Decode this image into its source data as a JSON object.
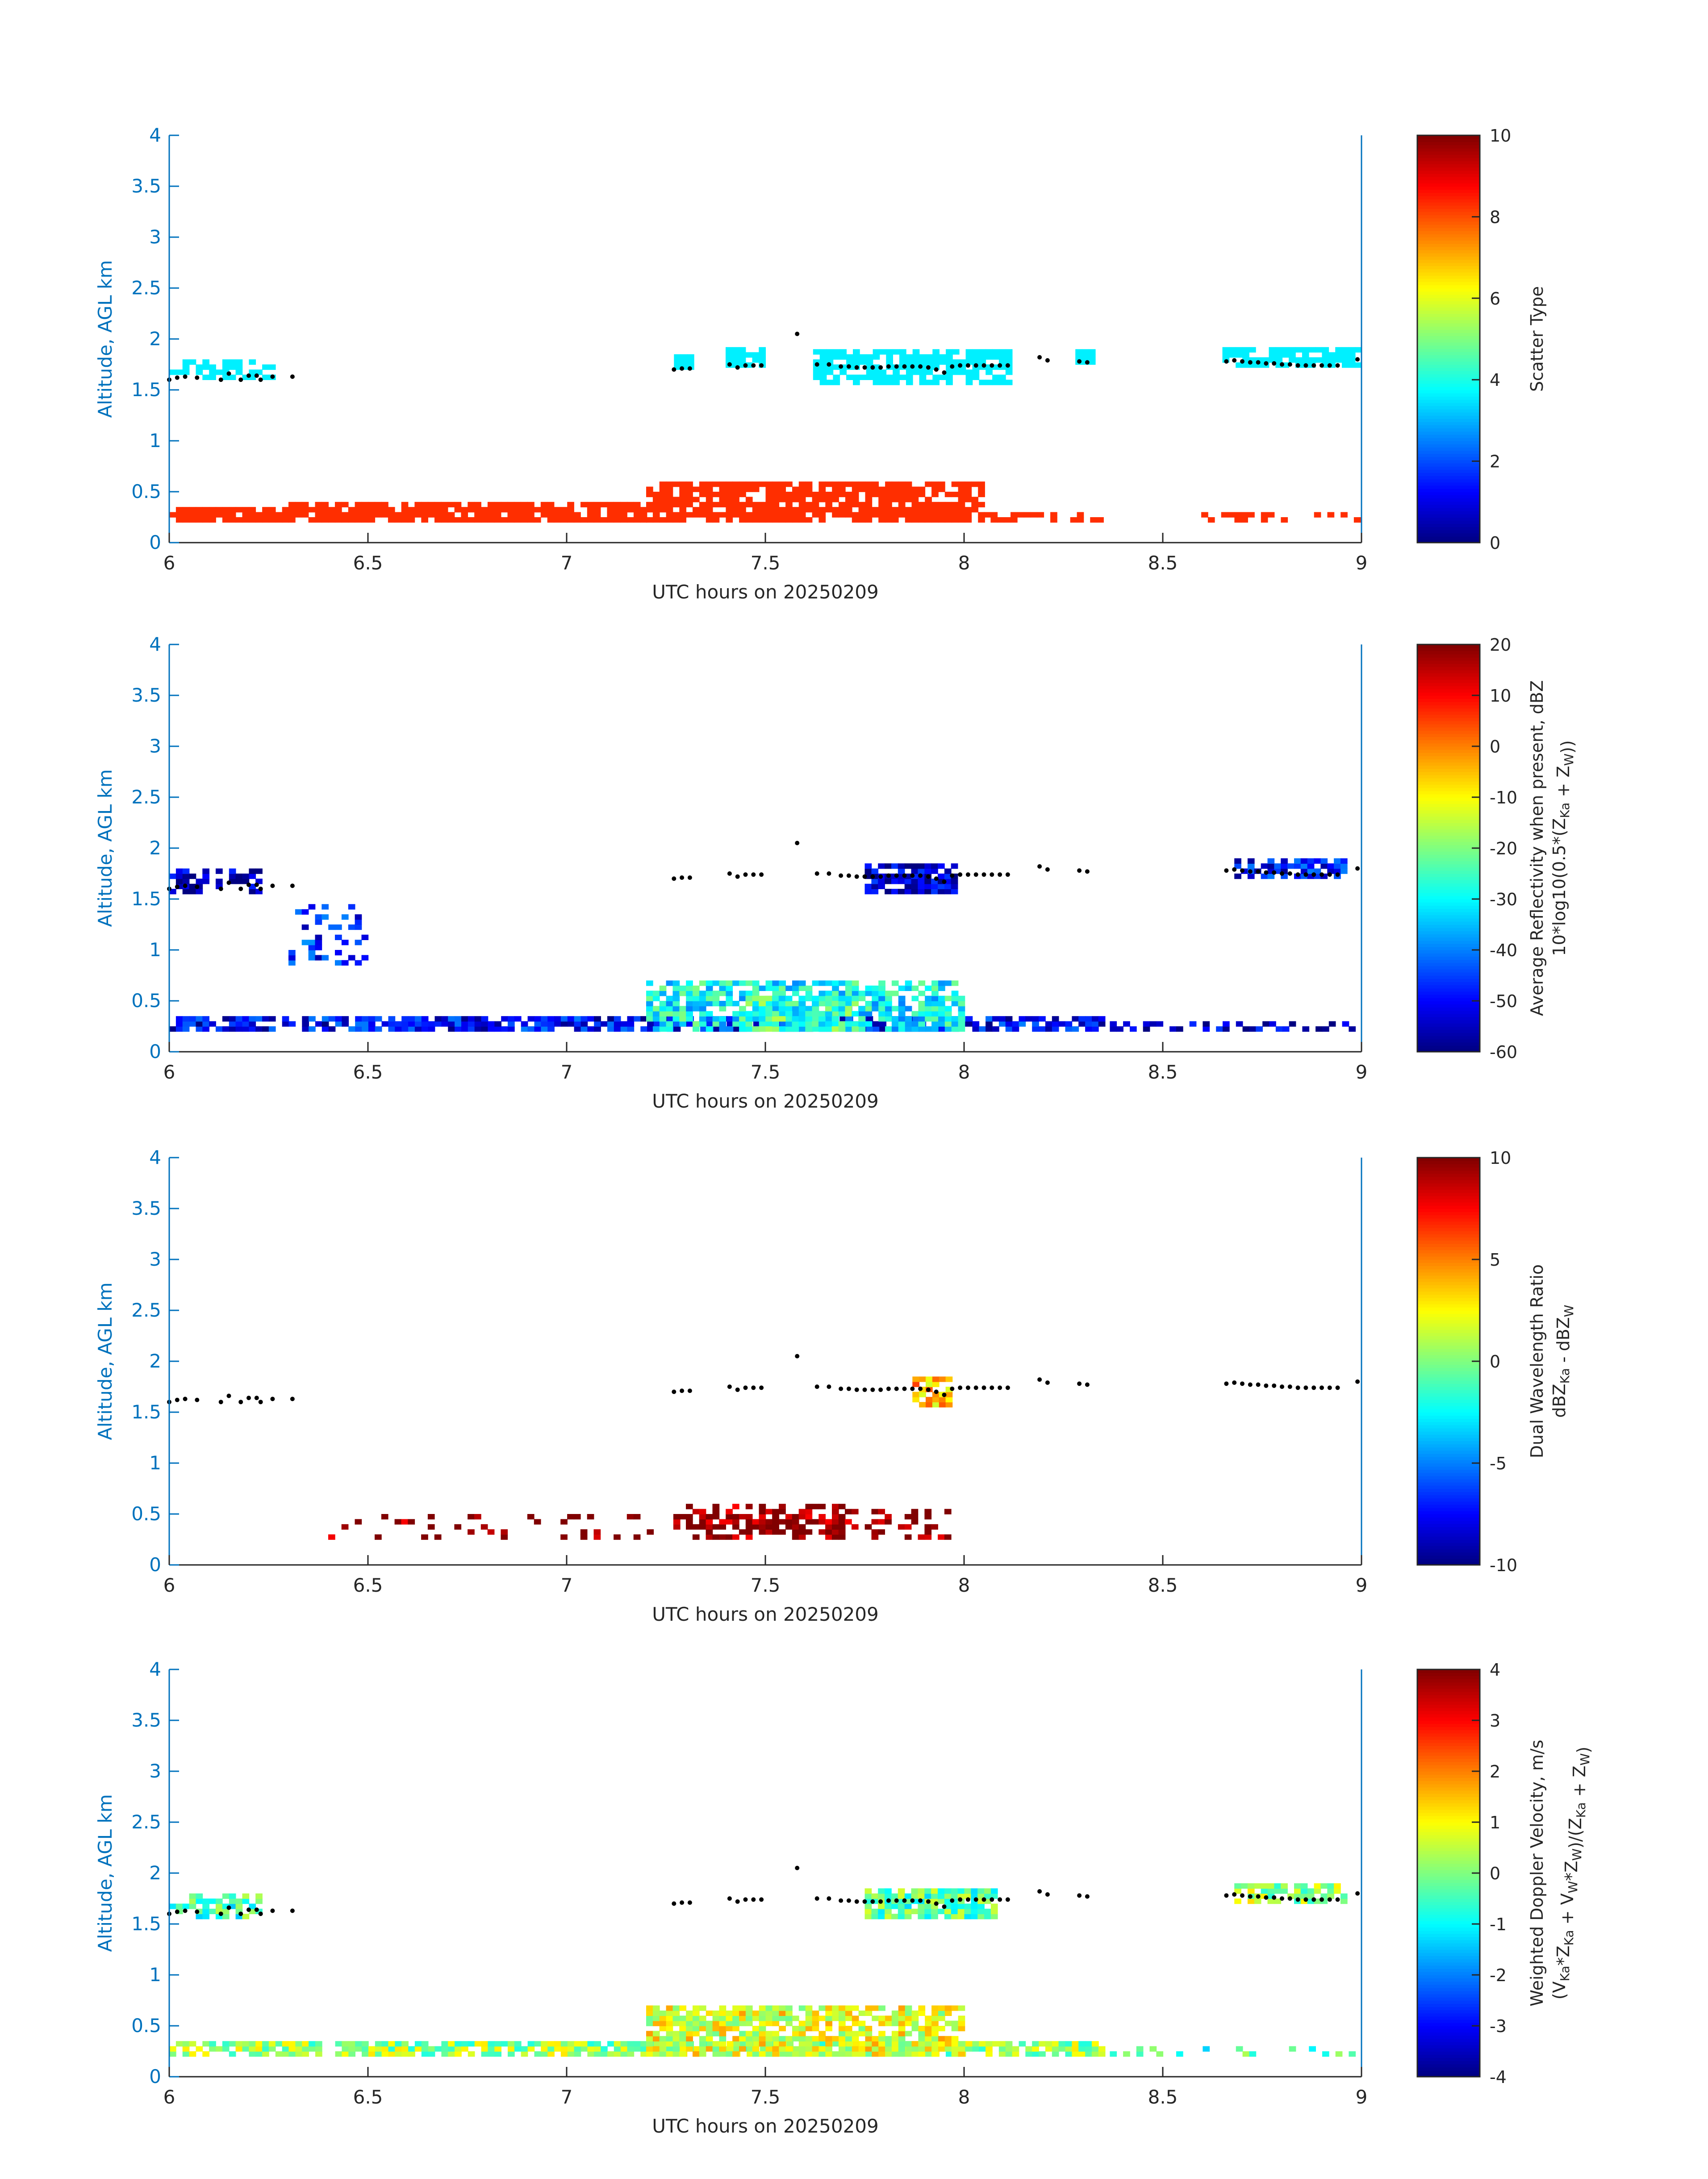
{
  "chart_data": [
    {
      "type": "heatmap",
      "xlabel": "UTC hours on 20250209",
      "ylabel": "Altitude, AGL km",
      "xlim": [
        6,
        9
      ],
      "ylim": [
        0,
        4
      ],
      "xticks": [
        "6",
        "6.5",
        "7",
        "7.5",
        "8",
        "8.5",
        "9"
      ],
      "yticks": [
        "0",
        "0.5",
        "1",
        "1.5",
        "2",
        "2.5",
        "3",
        "3.5",
        "4"
      ],
      "colorbar": {
        "label_lines": [
          "Scatter Type"
        ],
        "range": [
          0,
          10
        ],
        "ticks": [
          "0",
          "2",
          "4",
          "6",
          "8",
          "10"
        ],
        "colormap": "jet"
      },
      "colorbar_label_text": "Scatter Type",
      "layers": [
        {
          "value": 3.6,
          "x_range": [
            6.0,
            6.27
          ],
          "y_range": [
            1.6,
            1.8
          ],
          "density": 0.55
        },
        {
          "value": 3.6,
          "x_range": [
            7.27,
            7.32
          ],
          "y_range": [
            1.7,
            1.85
          ],
          "density": 0.9
        },
        {
          "value": 3.6,
          "x_range": [
            7.4,
            7.5
          ],
          "y_range": [
            1.72,
            1.9
          ],
          "density": 0.8
        },
        {
          "value": 3.6,
          "x_range": [
            7.62,
            8.12
          ],
          "y_range": [
            1.55,
            1.9
          ],
          "density": 0.75
        },
        {
          "value": 3.6,
          "x_range": [
            8.28,
            8.33
          ],
          "y_range": [
            1.75,
            1.9
          ],
          "density": 0.9
        },
        {
          "value": 3.6,
          "x_range": [
            8.65,
            9.0
          ],
          "y_range": [
            1.72,
            1.9
          ],
          "density": 0.8
        },
        {
          "value": 8.3,
          "x_range": [
            6.0,
            6.3
          ],
          "y_range": [
            0.2,
            0.35
          ],
          "density": 0.85
        },
        {
          "value": 8.3,
          "x_range": [
            6.3,
            7.2
          ],
          "y_range": [
            0.2,
            0.38
          ],
          "density": 0.85
        },
        {
          "value": 8.3,
          "x_range": [
            7.2,
            8.05
          ],
          "y_range": [
            0.2,
            0.6
          ],
          "density": 0.8
        },
        {
          "value": 8.3,
          "x_range": [
            8.05,
            8.35
          ],
          "y_range": [
            0.2,
            0.3
          ],
          "density": 0.5
        },
        {
          "value": 8.3,
          "x_range": [
            8.58,
            9.0
          ],
          "y_range": [
            0.2,
            0.3
          ],
          "density": 0.3
        }
      ]
    },
    {
      "type": "heatmap",
      "xlabel": "UTC hours on 20250209",
      "ylabel": "Altitude, AGL km",
      "xlim": [
        6,
        9
      ],
      "ylim": [
        0,
        4
      ],
      "xticks": [
        "6",
        "6.5",
        "7",
        "7.5",
        "8",
        "8.5",
        "9"
      ],
      "yticks": [
        "0",
        "0.5",
        "1",
        "1.5",
        "2",
        "2.5",
        "3",
        "3.5",
        "4"
      ],
      "colorbar": {
        "label_lines": [
          "Average Reflectivity when present, dBZ",
          "10*log10(0.5*(Z_Ka + Z_W))"
        ],
        "range": [
          -60,
          20
        ],
        "ticks": [
          "-60",
          "-50",
          "-40",
          "-30",
          "-20",
          "-10",
          "0",
          "10",
          "20"
        ],
        "colormap": "jet"
      },
      "colorbar_label_text": "Average Reflectivity when present, dBZ 10*log10(0.5*(ZKa + ZW))",
      "layers": [
        {
          "value": -57,
          "x_range": [
            6.0,
            6.22
          ],
          "y_range": [
            1.55,
            1.8
          ],
          "density": 0.55
        },
        {
          "value": -55,
          "x_range": [
            7.75,
            7.97
          ],
          "y_range": [
            1.55,
            1.85
          ],
          "density": 0.85
        },
        {
          "value": -50,
          "x_range": [
            8.68,
            8.95
          ],
          "y_range": [
            1.7,
            1.9
          ],
          "density": 0.75
        },
        {
          "value": -48,
          "x_range": [
            6.3,
            6.5
          ],
          "y_range": [
            0.85,
            1.45
          ],
          "density": 0.3
        },
        {
          "value": -50,
          "x_range": [
            6.0,
            8.35
          ],
          "y_range": [
            0.2,
            0.35
          ],
          "density": 0.75
        },
        {
          "value": -30,
          "x_range": [
            7.2,
            8.0
          ],
          "y_range": [
            0.2,
            0.7
          ],
          "density": 0.7
        },
        {
          "value": -25,
          "x_range": [
            7.45,
            7.75
          ],
          "y_range": [
            0.2,
            0.55
          ],
          "density": 0.6
        },
        {
          "value": -55,
          "x_range": [
            8.35,
            9.0
          ],
          "y_range": [
            0.2,
            0.3
          ],
          "density": 0.35
        }
      ]
    },
    {
      "type": "heatmap",
      "xlabel": "UTC hours on 20250209",
      "ylabel": "Altitude, AGL km",
      "xlim": [
        6,
        9
      ],
      "ylim": [
        0,
        4
      ],
      "xticks": [
        "6",
        "6.5",
        "7",
        "7.5",
        "8",
        "8.5",
        "9"
      ],
      "yticks": [
        "0",
        "0.5",
        "1",
        "1.5",
        "2",
        "2.5",
        "3",
        "3.5",
        "4"
      ],
      "colorbar": {
        "label_lines": [
          "Dual Wavelength Ratio",
          "dBZ_Ka - dBZ_W"
        ],
        "range": [
          -10,
          10
        ],
        "ticks": [
          "-10",
          "-5",
          "0",
          "5",
          "10"
        ],
        "colormap": "jet"
      },
      "colorbar_label_text": "Dual Wavelength Ratio dBZKa - dBZW",
      "layers": [
        {
          "value": 4,
          "x_range": [
            7.87,
            7.96
          ],
          "y_range": [
            1.55,
            1.85
          ],
          "density": 0.8
        },
        {
          "value": 10,
          "x_range": [
            7.3,
            7.7
          ],
          "y_range": [
            0.25,
            0.6
          ],
          "density": 0.6
        },
        {
          "value": 10,
          "x_range": [
            6.4,
            7.3
          ],
          "y_range": [
            0.25,
            0.5
          ],
          "density": 0.12
        },
        {
          "value": 10,
          "x_range": [
            7.7,
            7.96
          ],
          "y_range": [
            0.25,
            0.55
          ],
          "density": 0.35
        }
      ]
    },
    {
      "type": "heatmap",
      "xlabel": "UTC hours on 20250209",
      "ylabel": "Altitude, AGL km",
      "xlim": [
        6,
        9
      ],
      "ylim": [
        0,
        4
      ],
      "xticks": [
        "6",
        "6.5",
        "7",
        "7.5",
        "8",
        "8.5",
        "9"
      ],
      "yticks": [
        "0",
        "0.5",
        "1",
        "1.5",
        "2",
        "2.5",
        "3",
        "3.5",
        "4"
      ],
      "colorbar": {
        "label_lines": [
          "Weighted Doppler Velocity, m/s",
          "(V_Ka*Z_Ka + V_W*Z_W)/(Z_Ka + Z_W)"
        ],
        "range": [
          -4,
          4
        ],
        "ticks": [
          "-4",
          "-3",
          "-2",
          "-1",
          "0",
          "1",
          "2",
          "3",
          "4"
        ],
        "colormap": "jet"
      },
      "colorbar_label_text": "Weighted Doppler Velocity, m/s (VKa*ZKa + VW*ZW)/(ZKa + ZW)",
      "layers": [
        {
          "value": -0.5,
          "x_range": [
            6.0,
            6.22
          ],
          "y_range": [
            1.55,
            1.8
          ],
          "density": 0.5
        },
        {
          "value": -0.3,
          "x_range": [
            7.75,
            8.07
          ],
          "y_range": [
            1.55,
            1.85
          ],
          "density": 0.85
        },
        {
          "value": 0.3,
          "x_range": [
            8.68,
            8.95
          ],
          "y_range": [
            1.7,
            1.9
          ],
          "density": 0.75
        },
        {
          "value": 0.2,
          "x_range": [
            6.0,
            8.35
          ],
          "y_range": [
            0.2,
            0.35
          ],
          "density": 0.8
        },
        {
          "value": 0.8,
          "x_range": [
            7.2,
            8.0
          ],
          "y_range": [
            0.2,
            0.7
          ],
          "density": 0.7
        },
        {
          "value": -0.4,
          "x_range": [
            8.35,
            9.0
          ],
          "y_range": [
            0.2,
            0.3
          ],
          "density": 0.35
        }
      ]
    }
  ],
  "cloud_top_points": [
    [
      6.0,
      1.6
    ],
    [
      6.02,
      1.62
    ],
    [
      6.04,
      1.63
    ],
    [
      6.07,
      1.62
    ],
    [
      6.13,
      1.6
    ],
    [
      6.15,
      1.66
    ],
    [
      6.18,
      1.6
    ],
    [
      6.2,
      1.64
    ],
    [
      6.22,
      1.64
    ],
    [
      6.23,
      1.6
    ],
    [
      6.26,
      1.63
    ],
    [
      6.31,
      1.63
    ],
    [
      7.27,
      1.7
    ],
    [
      7.29,
      1.71
    ],
    [
      7.31,
      1.71
    ],
    [
      7.41,
      1.75
    ],
    [
      7.43,
      1.72
    ],
    [
      7.45,
      1.74
    ],
    [
      7.47,
      1.74
    ],
    [
      7.49,
      1.74
    ],
    [
      7.58,
      2.05
    ],
    [
      7.63,
      1.75
    ],
    [
      7.66,
      1.75
    ],
    [
      7.69,
      1.73
    ],
    [
      7.71,
      1.73
    ],
    [
      7.73,
      1.72
    ],
    [
      7.75,
      1.72
    ],
    [
      7.77,
      1.72
    ],
    [
      7.79,
      1.72
    ],
    [
      7.81,
      1.73
    ],
    [
      7.83,
      1.73
    ],
    [
      7.85,
      1.73
    ],
    [
      7.87,
      1.73
    ],
    [
      7.89,
      1.73
    ],
    [
      7.91,
      1.72
    ],
    [
      7.93,
      1.7
    ],
    [
      7.95,
      1.67
    ],
    [
      7.97,
      1.73
    ],
    [
      7.99,
      1.74
    ],
    [
      8.01,
      1.74
    ],
    [
      8.03,
      1.74
    ],
    [
      8.05,
      1.74
    ],
    [
      8.07,
      1.74
    ],
    [
      8.09,
      1.74
    ],
    [
      8.11,
      1.74
    ],
    [
      8.19,
      1.82
    ],
    [
      8.21,
      1.79
    ],
    [
      8.29,
      1.78
    ],
    [
      8.31,
      1.77
    ],
    [
      8.66,
      1.78
    ],
    [
      8.68,
      1.79
    ],
    [
      8.7,
      1.78
    ],
    [
      8.72,
      1.77
    ],
    [
      8.74,
      1.77
    ],
    [
      8.76,
      1.76
    ],
    [
      8.78,
      1.76
    ],
    [
      8.8,
      1.75
    ],
    [
      8.82,
      1.75
    ],
    [
      8.84,
      1.74
    ],
    [
      8.86,
      1.74
    ],
    [
      8.88,
      1.74
    ],
    [
      8.9,
      1.74
    ],
    [
      8.92,
      1.74
    ],
    [
      8.94,
      1.74
    ],
    [
      8.99,
      1.8
    ]
  ]
}
